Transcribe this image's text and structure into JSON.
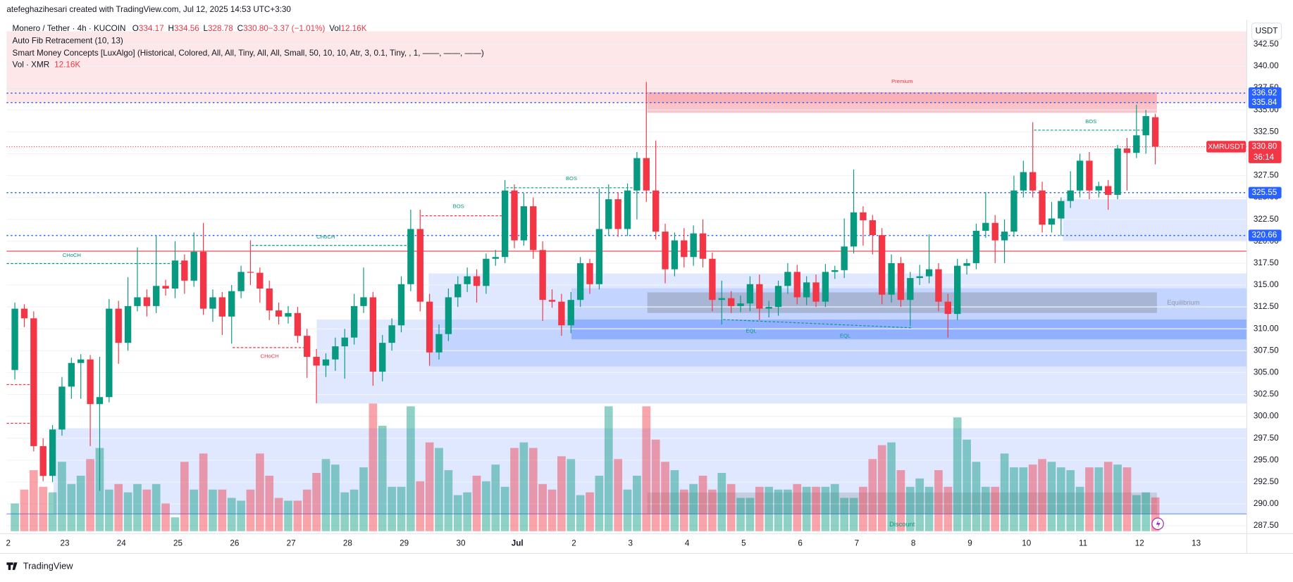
{
  "header": {
    "attribution": "atefeghazihesari created with TradingView.com, Jul 12, 2025 14:53 UTC+3:30",
    "symbol": "Monero / Tether · 4h · KUCOIN",
    "legend": [
      {
        "key": "O",
        "value": "334.17"
      },
      {
        "key": "H",
        "value": "334.56"
      },
      {
        "key": "L",
        "value": "328.78"
      },
      {
        "key": "C",
        "value": "330.80"
      },
      {
        "key": "",
        "value": "−3.37 (−1.01%)"
      },
      {
        "key": "Vol",
        "value": "12.16K"
      }
    ],
    "indicators": [
      "Auto Fib Retracement (10, 13)",
      "Smart Money Concepts [LuxAlgo] (Historical, Colored, All, All, Tiny, All, All, Small, 50, 10, 10, Atr, 3, 0.1, Tiny, , 1, ——, ——, ——)"
    ],
    "volume_indicator": {
      "name": "Vol · XMR",
      "value": "12.16K"
    },
    "currency": "USDT",
    "footer": "TradingView"
  },
  "annotations": [
    "Premium",
    "BOS",
    "BOS",
    "CHoCH",
    "CHoCH",
    "CHoCH",
    "BOS",
    "EQL",
    "EQL",
    "Equilibrium",
    "Discount"
  ],
  "chart_data": {
    "type": "candlestick",
    "up_color": "#089981",
    "down_color": "#f23645",
    "x_labels": [
      "2",
      "23",
      "24",
      "25",
      "26",
      "27",
      "28",
      "29",
      "30",
      "Jul",
      "2",
      "3",
      "4",
      "5",
      "6",
      "7",
      "8",
      "9",
      "10",
      "11",
      "12",
      "13"
    ],
    "ylim": [
      286.6,
      345.3
    ],
    "yticks": [
      {
        "value": 342.5,
        "label": "342.50"
      },
      {
        "value": 340,
        "label": "340.00"
      },
      {
        "value": 337.5,
        "label": "337.50"
      },
      {
        "value": 335,
        "label": "335.00"
      },
      {
        "value": 332.5,
        "label": "332.50"
      },
      {
        "value": 330,
        "label": "330.00"
      },
      {
        "value": 327.5,
        "label": "327.50"
      },
      {
        "value": 325,
        "label": "325.00"
      },
      {
        "value": 322.5,
        "label": "322.50"
      },
      {
        "value": 320,
        "label": "320.00"
      },
      {
        "value": 317.5,
        "label": "317.50"
      },
      {
        "value": 315,
        "label": "315.00"
      },
      {
        "value": 312.5,
        "label": "312.50"
      },
      {
        "value": 310,
        "label": "310.00"
      },
      {
        "value": 307.5,
        "label": "307.50"
      },
      {
        "value": 305,
        "label": "305.00"
      },
      {
        "value": 302.5,
        "label": "302.50"
      },
      {
        "value": 300,
        "label": "300.00"
      },
      {
        "value": 297.5,
        "label": "297.50"
      },
      {
        "value": 295,
        "label": "295.00"
      },
      {
        "value": 292.5,
        "label": "292.50"
      },
      {
        "value": 290,
        "label": "290.00"
      },
      {
        "value": 287.5,
        "label": "287.50"
      }
    ],
    "price_lines": [
      336.92,
      335.84,
      325.55,
      320.66
    ],
    "last_price": {
      "value": 330.8,
      "label": "330.80"
    },
    "symbol": "XMRUSDT",
    "countdown": "36:14",
    "ohlc": [
      [
        305.3,
        313.0,
        304.2,
        312.3
      ],
      [
        312.3,
        312.8,
        310.2,
        311.2
      ],
      [
        311.2,
        312.0,
        296.0,
        296.6
      ],
      [
        296.6,
        297.5,
        292.6,
        293.2
      ],
      [
        293.2,
        299.0,
        292.5,
        298.5
      ],
      [
        298.5,
        304.5,
        297.8,
        303.4
      ],
      [
        303.4,
        306.7,
        302.0,
        306.1
      ],
      [
        306.1,
        307.1,
        302.0,
        306.5
      ],
      [
        306.5,
        307.0,
        296.6,
        301.4
      ],
      [
        301.4,
        306.8,
        291.5,
        302.2
      ],
      [
        302.2,
        313.4,
        301.6,
        312.3
      ],
      [
        312.3,
        313.2,
        306.0,
        308.4
      ],
      [
        308.4,
        315.9,
        307.5,
        312.6
      ],
      [
        312.6,
        319.3,
        312.0,
        313.6
      ],
      [
        313.6,
        314.5,
        311.4,
        312.6
      ],
      [
        312.6,
        320.6,
        311.8,
        314.9
      ],
      [
        314.9,
        315.6,
        313.8,
        314.6
      ],
      [
        314.6,
        320.0,
        313.5,
        317.8
      ],
      [
        317.8,
        318.5,
        314.0,
        315.5
      ],
      [
        315.5,
        321.0,
        314.8,
        318.8
      ],
      [
        318.8,
        322.1,
        311.6,
        312.3
      ],
      [
        312.3,
        314.5,
        310.8,
        313.6
      ],
      [
        313.6,
        314.2,
        309.3,
        311.4
      ],
      [
        311.4,
        315.0,
        308.3,
        314.3
      ],
      [
        314.3,
        317.2,
        313.5,
        316.5
      ],
      [
        316.5,
        320.1,
        315.0,
        316.4
      ],
      [
        316.4,
        317.0,
        313.0,
        314.6
      ],
      [
        314.6,
        315.5,
        311.0,
        312.1
      ],
      [
        312.1,
        313.0,
        310.5,
        311.4
      ],
      [
        311.4,
        312.6,
        310.6,
        311.8
      ],
      [
        311.8,
        312.5,
        308.4,
        309.2
      ],
      [
        309.2,
        310.0,
        304.4,
        306.8
      ],
      [
        306.8,
        307.7,
        301.5,
        305.8
      ],
      [
        305.8,
        307.2,
        304.5,
        306.5
      ],
      [
        306.5,
        309.0,
        305.2,
        308.0
      ],
      [
        308.0,
        310.0,
        304.3,
        309.0
      ],
      [
        309.0,
        314.0,
        308.2,
        312.6
      ],
      [
        312.6,
        317.0,
        311.8,
        313.6
      ],
      [
        313.6,
        314.2,
        303.5,
        305.1
      ],
      [
        305.1,
        309.3,
        304.0,
        308.4
      ],
      [
        308.4,
        311.2,
        307.5,
        310.4
      ],
      [
        310.4,
        316.0,
        309.6,
        315.1
      ],
      [
        315.1,
        323.6,
        314.3,
        321.4
      ],
      [
        321.4,
        323.6,
        312.0,
        313.1
      ],
      [
        313.1,
        314.0,
        305.8,
        307.3
      ],
      [
        307.3,
        310.5,
        306.5,
        309.4
      ],
      [
        309.4,
        314.6,
        308.6,
        313.6
      ],
      [
        313.6,
        316.0,
        312.5,
        315.1
      ],
      [
        315.1,
        317.0,
        314.2,
        316.0
      ],
      [
        316.0,
        316.8,
        313.0,
        314.9
      ],
      [
        314.9,
        318.6,
        314.0,
        318.0
      ],
      [
        318.0,
        319.0,
        317.2,
        318.2
      ],
      [
        318.2,
        327.0,
        317.5,
        325.8
      ],
      [
        325.8,
        326.5,
        319.2,
        320.1
      ],
      [
        320.1,
        325.5,
        319.5,
        324.0
      ],
      [
        324.0,
        325.0,
        318.0,
        319.0
      ],
      [
        319.0,
        320.0,
        310.9,
        313.3
      ],
      [
        313.3,
        314.5,
        312.4,
        313.1
      ],
      [
        313.1,
        314.0,
        309.2,
        310.4
      ],
      [
        310.4,
        314.2,
        309.5,
        313.3
      ],
      [
        313.3,
        318.2,
        312.5,
        317.5
      ],
      [
        317.5,
        318.0,
        314.0,
        315.1
      ],
      [
        315.1,
        326.0,
        314.5,
        321.4
      ],
      [
        321.4,
        326.5,
        320.6,
        324.8
      ],
      [
        324.8,
        325.6,
        320.5,
        321.4
      ],
      [
        321.4,
        326.6,
        320.6,
        325.8
      ],
      [
        325.8,
        330.2,
        322.5,
        329.5
      ],
      [
        329.5,
        338.2,
        324.5,
        325.8
      ],
      [
        325.8,
        331.5,
        320.2,
        321.1
      ],
      [
        321.1,
        322.0,
        315.2,
        316.8
      ],
      [
        316.8,
        321.0,
        316.0,
        320.1
      ],
      [
        320.1,
        321.5,
        317.0,
        318.2
      ],
      [
        318.2,
        321.8,
        317.2,
        320.9
      ],
      [
        320.9,
        322.5,
        317.0,
        318.0
      ],
      [
        318.0,
        318.7,
        312.0,
        313.3
      ],
      [
        313.3,
        315.5,
        310.5,
        313.5
      ],
      [
        313.5,
        314.3,
        311.8,
        312.6
      ],
      [
        312.6,
        313.8,
        311.9,
        312.9
      ],
      [
        312.9,
        316.0,
        312.0,
        315.1
      ],
      [
        315.1,
        316.2,
        311.0,
        312.3
      ],
      [
        312.3,
        313.2,
        311.3,
        312.5
      ],
      [
        312.5,
        315.5,
        311.5,
        314.9
      ],
      [
        314.9,
        317.5,
        314.0,
        316.5
      ],
      [
        316.5,
        317.3,
        312.8,
        313.6
      ],
      [
        313.6,
        316.0,
        312.7,
        315.3
      ],
      [
        315.3,
        316.2,
        312.5,
        313.1
      ],
      [
        313.1,
        317.4,
        312.5,
        316.5
      ],
      [
        316.5,
        317.2,
        315.7,
        316.7
      ],
      [
        316.7,
        322.6,
        315.8,
        319.4
      ],
      [
        319.4,
        328.2,
        318.6,
        323.3
      ],
      [
        323.3,
        324.0,
        319.5,
        322.4
      ],
      [
        322.4,
        323.0,
        318.5,
        320.7
      ],
      [
        320.7,
        321.5,
        312.8,
        313.9
      ],
      [
        313.9,
        318.5,
        313.0,
        317.5
      ],
      [
        317.5,
        318.2,
        312.5,
        313.3
      ],
      [
        313.3,
        316.5,
        310.3,
        315.8
      ],
      [
        315.8,
        317.3,
        315.0,
        316.0
      ],
      [
        316.0,
        320.8,
        315.2,
        316.8
      ],
      [
        316.8,
        317.5,
        312.0,
        313.1
      ],
      [
        313.1,
        314.0,
        309.0,
        311.7
      ],
      [
        311.7,
        318.0,
        311.0,
        317.2
      ],
      [
        317.2,
        318.0,
        316.2,
        317.5
      ],
      [
        317.5,
        322.0,
        316.8,
        321.2
      ],
      [
        321.2,
        325.6,
        320.4,
        322.1
      ],
      [
        322.1,
        323.0,
        317.5,
        320.1
      ],
      [
        320.1,
        322.5,
        317.5,
        321.1
      ],
      [
        321.1,
        327.5,
        320.5,
        325.8
      ],
      [
        325.8,
        329.2,
        325.0,
        327.9
      ],
      [
        327.9,
        333.6,
        325.0,
        325.8
      ],
      [
        325.8,
        326.8,
        321.0,
        321.9
      ],
      [
        321.9,
        324.5,
        321.0,
        322.6
      ],
      [
        322.6,
        325.0,
        320.6,
        324.6
      ],
      [
        324.6,
        328.0,
        323.8,
        325.8
      ],
      [
        325.8,
        330.0,
        325.0,
        329.2
      ],
      [
        329.2,
        330.2,
        324.8,
        325.8
      ],
      [
        325.8,
        326.8,
        325.0,
        326.3
      ],
      [
        326.3,
        327.0,
        323.6,
        325.3
      ],
      [
        325.3,
        331.0,
        324.8,
        330.6
      ],
      [
        330.6,
        331.8,
        325.8,
        330.1
      ],
      [
        330.1,
        335.6,
        329.5,
        332.1
      ],
      [
        332.1,
        335.0,
        330.0,
        334.3
      ],
      [
        334.17,
        334.56,
        328.78,
        330.8
      ]
    ],
    "volume": [
      10,
      15,
      22,
      16,
      14,
      25,
      17,
      20,
      26,
      30,
      15,
      17,
      14,
      17,
      15,
      17,
      10,
      5,
      25,
      15,
      28,
      15,
      15,
      12,
      11,
      15,
      28,
      20,
      12,
      11,
      11,
      15,
      21,
      26,
      24,
      14,
      15,
      23,
      46,
      38,
      16,
      16,
      45,
      18,
      32,
      30,
      22,
      13,
      14,
      20,
      18,
      24,
      16,
      30,
      32,
      30,
      17,
      15,
      27,
      26,
      13,
      14,
      20,
      45,
      26,
      15,
      20,
      45,
      33,
      25,
      22,
      15,
      17,
      20,
      15,
      21,
      17,
      12,
      12,
      16,
      16,
      15,
      15,
      17,
      16,
      16,
      16,
      17,
      12,
      12,
      16,
      26,
      31,
      32,
      22,
      16,
      19,
      16,
      22,
      16,
      41,
      33,
      25,
      16,
      16,
      28,
      23,
      23,
      24,
      26,
      25,
      23,
      22,
      16,
      23,
      23,
      25,
      24,
      23,
      13,
      14,
      12.16
    ]
  }
}
